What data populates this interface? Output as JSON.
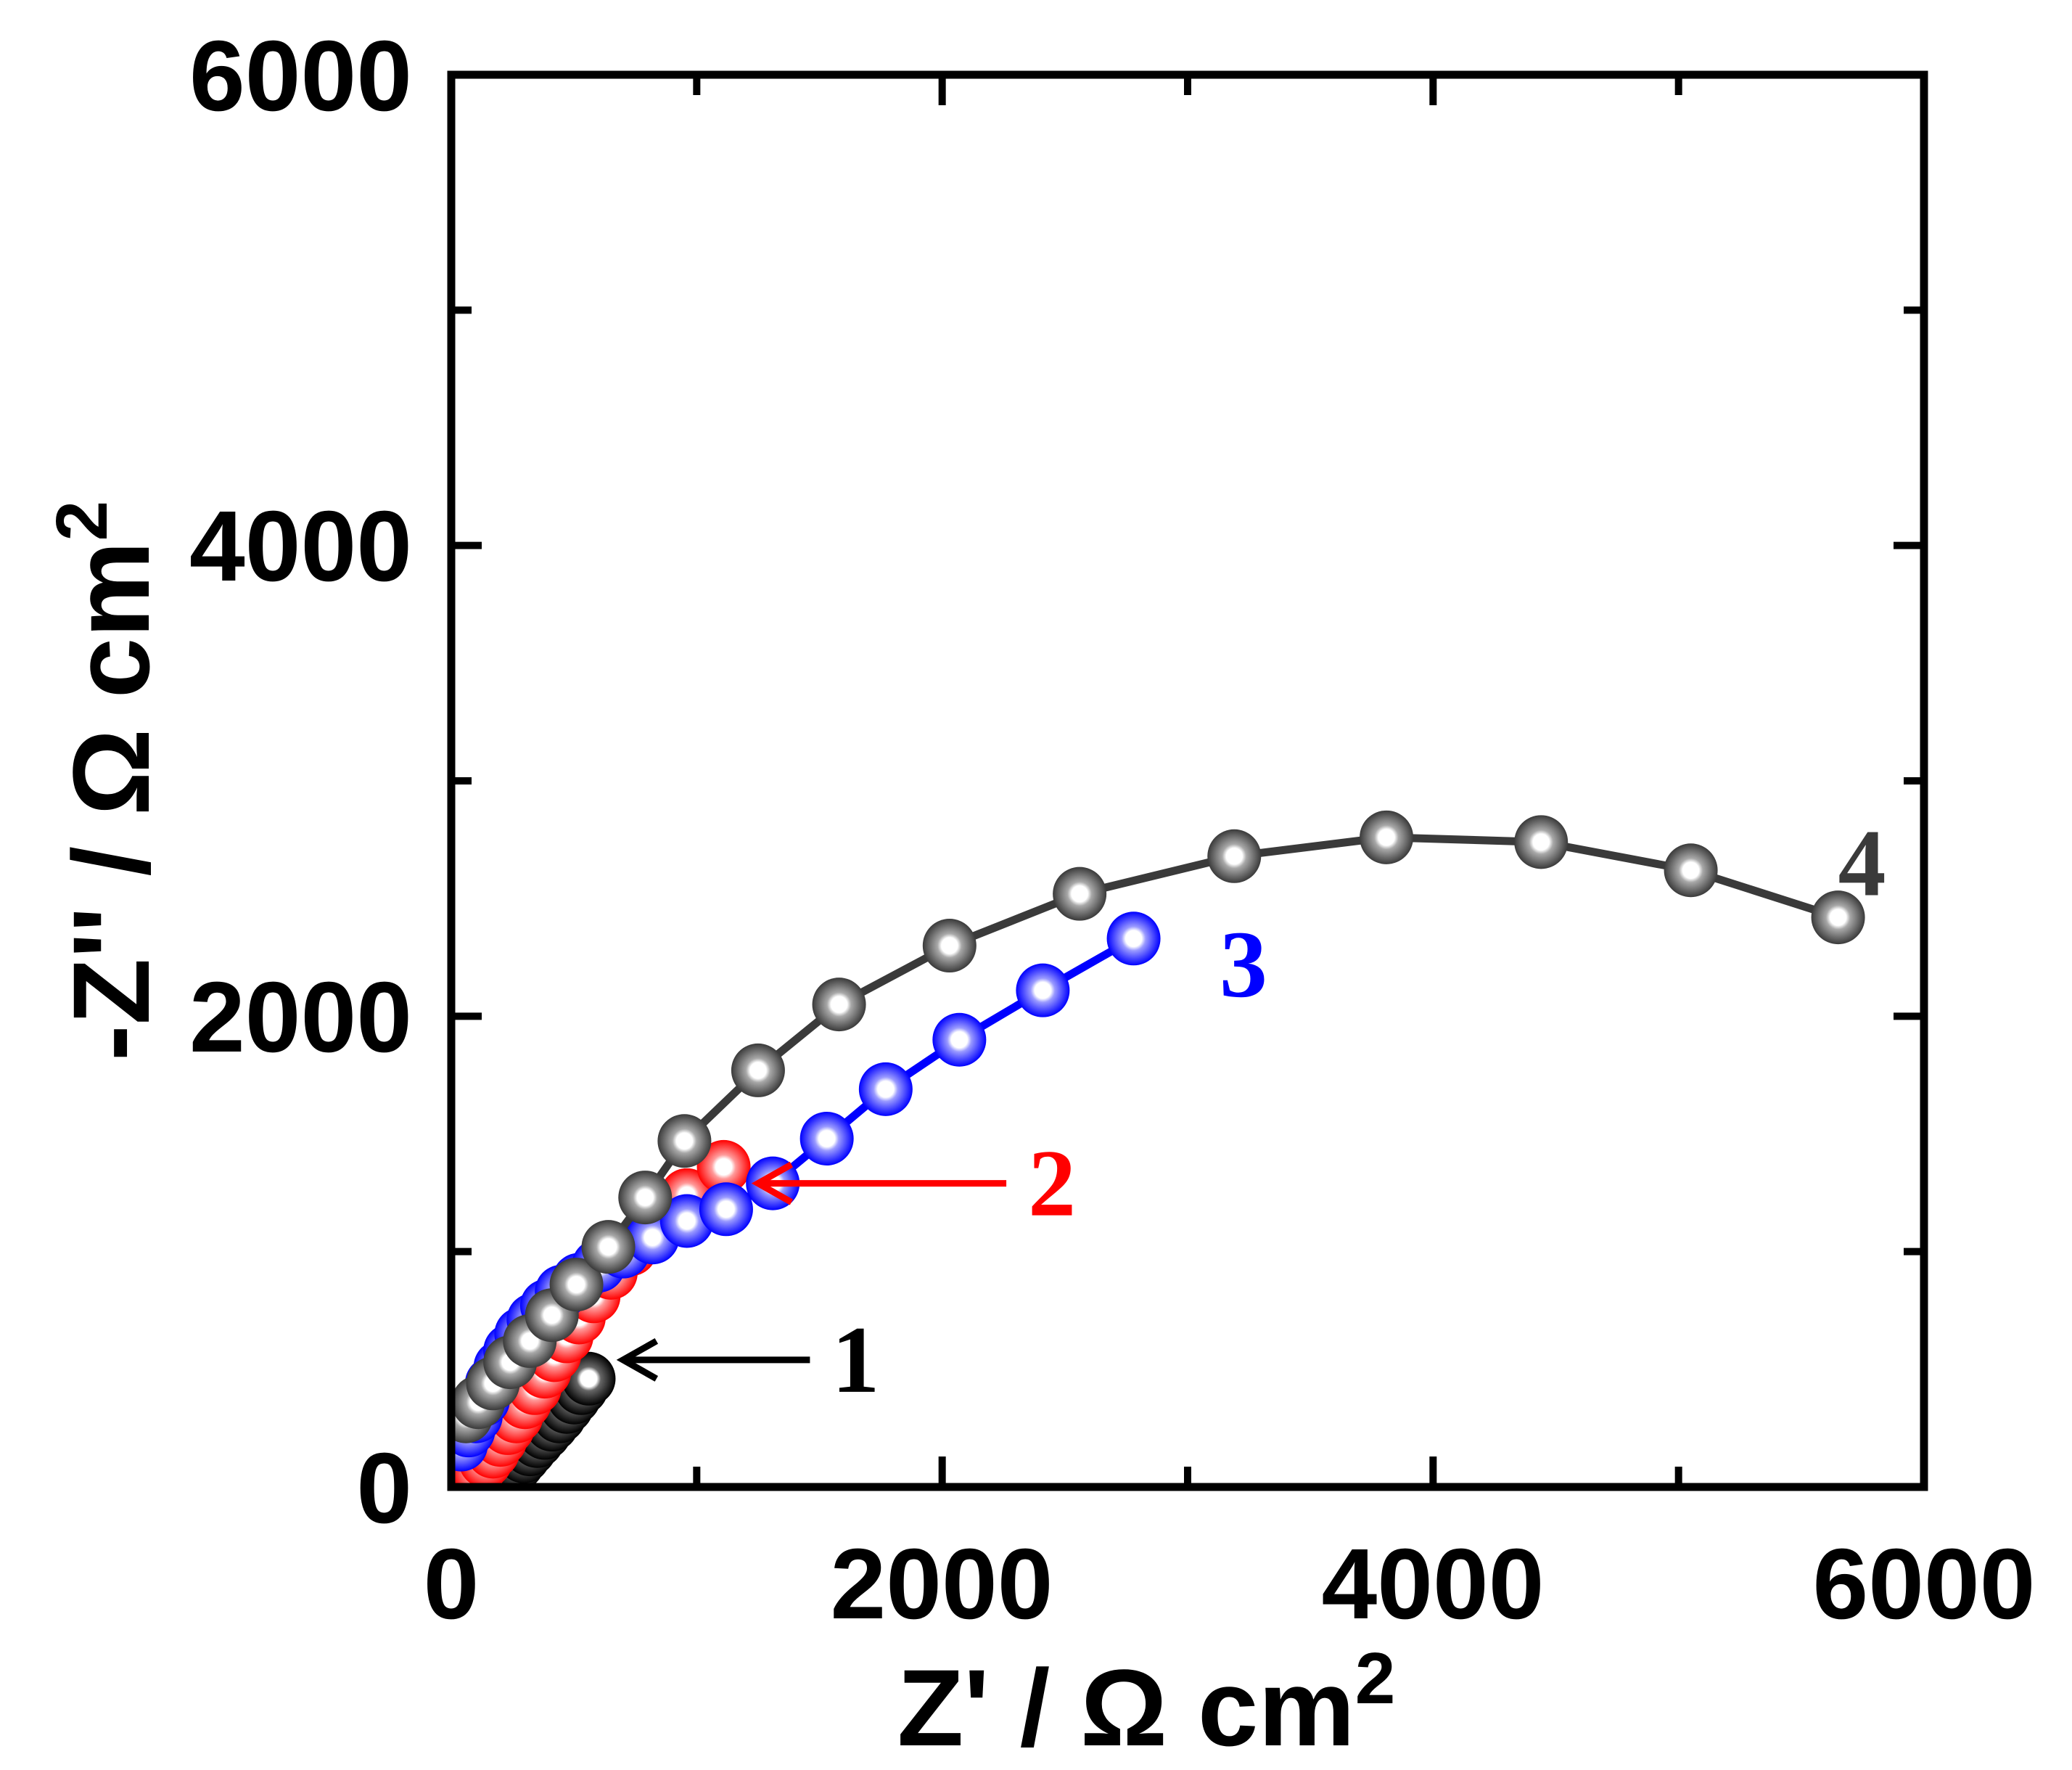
{
  "chart_data": {
    "type": "scatter",
    "title": "",
    "xlabel": "Z' / Ω cm",
    "xlabel_sup": "2",
    "ylabel": "-Z'' / Ω cm",
    "ylabel_sup": "2",
    "xlim": [
      0,
      6000
    ],
    "ylim": [
      0,
      6000
    ],
    "xticks": [
      0,
      2000,
      4000,
      6000
    ],
    "yticks": [
      0,
      2000,
      4000,
      6000
    ],
    "xtick_labels": [
      "0",
      "2000",
      "4000",
      "6000"
    ],
    "ytick_labels": [
      "0",
      "2000",
      "4000",
      "6000"
    ],
    "minor_ticks": [
      1000,
      3000,
      5000
    ],
    "grid": false,
    "series": [
      {
        "name": "1",
        "label": "1",
        "color": "#000000",
        "line": true,
        "label_pos": [
          1550,
          540
        ],
        "arrow_tip": [
          700,
          540
        ],
        "x": [
          180,
          200,
          220,
          245,
          270,
          295,
          320,
          350,
          380,
          410,
          440,
          470,
          500,
          530,
          560
        ],
        "y": [
          0,
          20,
          45,
          70,
          100,
          130,
          160,
          195,
          230,
          265,
          300,
          340,
          380,
          420,
          460
        ]
      },
      {
        "name": "2",
        "label": "2",
        "color": "#ff0000",
        "line": true,
        "label_pos": [
          2350,
          1290
        ],
        "arrow_tip": [
          1250,
          1290
        ],
        "x": [
          80,
          110,
          140,
          170,
          200,
          230,
          265,
          300,
          340,
          380,
          420,
          470,
          520,
          580,
          650,
          730,
          830,
          960,
          1110
        ],
        "y": [
          30,
          70,
          110,
          150,
          200,
          250,
          300,
          360,
          420,
          490,
          560,
          640,
          720,
          810,
          910,
          1010,
          1130,
          1240,
          1360
        ]
      },
      {
        "name": "3",
        "label": "3",
        "color": "#0000ff",
        "line": true,
        "label_pos": [
          3130,
          2220
        ],
        "x": [
          40,
          70,
          100,
          130,
          165,
          200,
          240,
          285,
          335,
          390,
          450,
          520,
          600,
          700,
          820,
          960,
          1120,
          1310,
          1530,
          1770,
          2070,
          2410,
          2780
        ],
        "y": [
          180,
          240,
          300,
          370,
          440,
          510,
          580,
          650,
          710,
          770,
          830,
          880,
          940,
          1000,
          1060,
          1130,
          1180,
          1290,
          1480,
          1690,
          1900,
          2110,
          2330
        ]
      },
      {
        "name": "4",
        "label": "4",
        "color": "#3a3a3a",
        "line": true,
        "label_pos": [
          5650,
          2650
        ],
        "x": [
          60,
          110,
          170,
          240,
          320,
          410,
          510,
          640,
          790,
          950,
          1250,
          1580,
          2030,
          2560,
          3190,
          3810,
          4440,
          5050,
          5650
        ],
        "y": [
          300,
          360,
          440,
          530,
          620,
          730,
          860,
          1020,
          1230,
          1470,
          1770,
          2050,
          2300,
          2520,
          2680,
          2760,
          2740,
          2620,
          2420
        ]
      }
    ]
  }
}
